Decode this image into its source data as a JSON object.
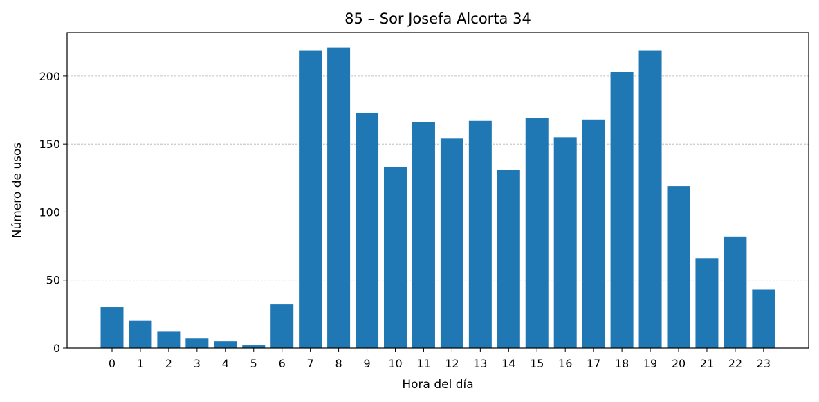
{
  "chart_data": {
    "type": "bar",
    "title": "85 – Sor Josefa Alcorta 34",
    "xlabel": "Hora del día",
    "ylabel": "Número de usos",
    "categories": [
      "0",
      "1",
      "2",
      "3",
      "4",
      "5",
      "6",
      "7",
      "8",
      "9",
      "10",
      "11",
      "12",
      "13",
      "14",
      "15",
      "16",
      "17",
      "18",
      "19",
      "20",
      "21",
      "22",
      "23"
    ],
    "values": [
      30,
      20,
      12,
      7,
      5,
      2,
      32,
      219,
      221,
      173,
      133,
      166,
      154,
      167,
      131,
      169,
      155,
      168,
      203,
      219,
      119,
      66,
      82,
      43
    ],
    "ylim": [
      0,
      232
    ],
    "yticks": [
      0,
      50,
      100,
      150,
      200
    ],
    "grid": "horizontal dashed",
    "bar_color": "#1f77b4"
  }
}
